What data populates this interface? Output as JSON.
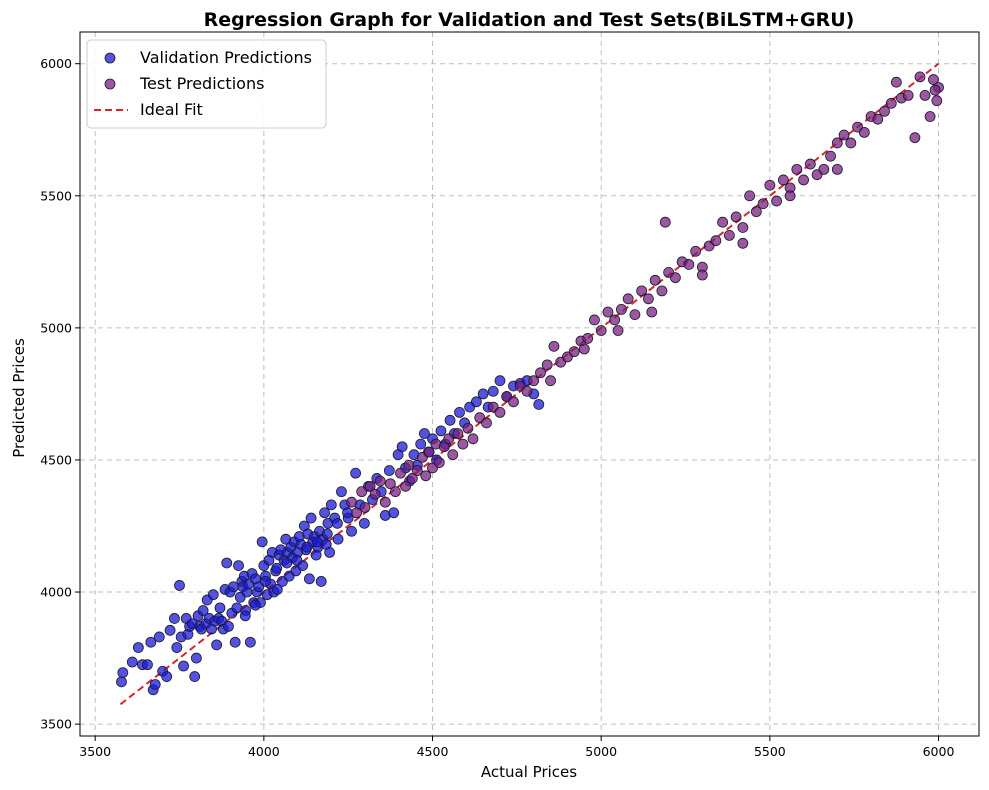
{
  "chart_data": {
    "type": "scatter",
    "title": "Regression Graph for Validation and Test Sets(BiLSTM+GRU)",
    "xlabel": "Actual Prices",
    "ylabel": "Predicted Prices",
    "xlim": [
      3455,
      6120
    ],
    "ylim": [
      3455,
      6120
    ],
    "x_ticks": [
      "3500",
      "4000",
      "4500",
      "5000",
      "5500",
      "6000"
    ],
    "y_ticks": [
      "3500",
      "4000",
      "4500",
      "5000",
      "5500",
      "6000"
    ],
    "grid": true,
    "legend_position": "top-left",
    "legend": {
      "validation": "Validation Predictions",
      "test": "Test Predictions",
      "ideal": "Ideal Fit"
    },
    "colors": {
      "validation_fill": "#1a1ad6",
      "test_fill": "#7a1f7f",
      "marker_edge": "#1a1a2e",
      "ideal_line": "#d62728"
    },
    "ideal_fit": {
      "x": [
        3575,
        6000
      ],
      "y": [
        3575,
        6000
      ]
    },
    "series": [
      {
        "name": "Validation Predictions",
        "points": [
          [
            3578,
            3660
          ],
          [
            3582,
            3695
          ],
          [
            3610,
            3735
          ],
          [
            3628,
            3790
          ],
          [
            3640,
            3725
          ],
          [
            3655,
            3725
          ],
          [
            3665,
            3810
          ],
          [
            3672,
            3630
          ],
          [
            3678,
            3650
          ],
          [
            3690,
            3830
          ],
          [
            3700,
            3700
          ],
          [
            3712,
            3680
          ],
          [
            3722,
            3855
          ],
          [
            3735,
            3900
          ],
          [
            3742,
            3790
          ],
          [
            3750,
            4025
          ],
          [
            3755,
            3830
          ],
          [
            3762,
            3720
          ],
          [
            3770,
            3900
          ],
          [
            3775,
            3840
          ],
          [
            3780,
            3870
          ],
          [
            3788,
            3880
          ],
          [
            3795,
            3680
          ],
          [
            3800,
            3750
          ],
          [
            3805,
            3910
          ],
          [
            3810,
            3870
          ],
          [
            3815,
            3860
          ],
          [
            3820,
            3930
          ],
          [
            3828,
            3880
          ],
          [
            3832,
            3970
          ],
          [
            3838,
            3900
          ],
          [
            3845,
            3860
          ],
          [
            3850,
            3990
          ],
          [
            3855,
            3890
          ],
          [
            3860,
            3800
          ],
          [
            3866,
            3900
          ],
          [
            3870,
            3940
          ],
          [
            3875,
            3890
          ],
          [
            3880,
            3860
          ],
          [
            3885,
            4010
          ],
          [
            3890,
            4110
          ],
          [
            3895,
            3870
          ],
          [
            3900,
            4000
          ],
          [
            3905,
            3920
          ],
          [
            3910,
            4020
          ],
          [
            3915,
            3810
          ],
          [
            3920,
            3940
          ],
          [
            3925,
            4100
          ],
          [
            3930,
            3980
          ],
          [
            3935,
            4040
          ],
          [
            3938,
            4020
          ],
          [
            3942,
            4060
          ],
          [
            3946,
            3930
          ],
          [
            3950,
            4000
          ],
          [
            3955,
            4030
          ],
          [
            3960,
            3810
          ],
          [
            3965,
            4070
          ],
          [
            3970,
            3960
          ],
          [
            3975,
            4050
          ],
          [
            3980,
            4000
          ],
          [
            3985,
            4020
          ],
          [
            3990,
            3960
          ],
          [
            3995,
            4190
          ],
          [
            4000,
            4100
          ],
          [
            4005,
            4060
          ],
          [
            4010,
            3990
          ],
          [
            4015,
            4120
          ],
          [
            4020,
            4030
          ],
          [
            4025,
            4150
          ],
          [
            4030,
            4000
          ],
          [
            4035,
            4080
          ],
          [
            4040,
            4010
          ],
          [
            4045,
            4140
          ],
          [
            4050,
            4160
          ],
          [
            4055,
            4040
          ],
          [
            4060,
            4120
          ],
          [
            4065,
            4200
          ],
          [
            4070,
            4150
          ],
          [
            4075,
            4060
          ],
          [
            4080,
            4170
          ],
          [
            4085,
            4130
          ],
          [
            4090,
            4190
          ],
          [
            4095,
            4080
          ],
          [
            4100,
            4150
          ],
          [
            4105,
            4210
          ],
          [
            4110,
            4180
          ],
          [
            4115,
            4100
          ],
          [
            4120,
            4250
          ],
          [
            4125,
            4160
          ],
          [
            4130,
            4220
          ],
          [
            4135,
            4050
          ],
          [
            4140,
            4280
          ],
          [
            4145,
            4190
          ],
          [
            4150,
            4210
          ],
          [
            4155,
            4140
          ],
          [
            4160,
            4170
          ],
          [
            4165,
            4230
          ],
          [
            4170,
            4040
          ],
          [
            4175,
            4200
          ],
          [
            4180,
            4300
          ],
          [
            4185,
            4180
          ],
          [
            4190,
            4260
          ],
          [
            4195,
            4150
          ],
          [
            4200,
            4330
          ],
          [
            4210,
            4280
          ],
          [
            4220,
            4200
          ],
          [
            4230,
            4380
          ],
          [
            4240,
            4330
          ],
          [
            4250,
            4280
          ],
          [
            4260,
            4230
          ],
          [
            4272,
            4450
          ],
          [
            4285,
            4330
          ],
          [
            4298,
            4260
          ],
          [
            4310,
            4400
          ],
          [
            4322,
            4350
          ],
          [
            4335,
            4430
          ],
          [
            4348,
            4380
          ],
          [
            4360,
            4290
          ],
          [
            4372,
            4460
          ],
          [
            4385,
            4300
          ],
          [
            4398,
            4520
          ],
          [
            4410,
            4550
          ],
          [
            4420,
            4470
          ],
          [
            4432,
            4420
          ],
          [
            4445,
            4520
          ],
          [
            4455,
            4480
          ],
          [
            4465,
            4560
          ],
          [
            4476,
            4600
          ],
          [
            4488,
            4530
          ],
          [
            4500,
            4580
          ],
          [
            4512,
            4500
          ],
          [
            4525,
            4610
          ],
          [
            4538,
            4560
          ],
          [
            4552,
            4650
          ],
          [
            4565,
            4600
          ],
          [
            4580,
            4680
          ],
          [
            4595,
            4640
          ],
          [
            4610,
            4700
          ],
          [
            4630,
            4720
          ],
          [
            4650,
            4750
          ],
          [
            4665,
            4700
          ],
          [
            4680,
            4760
          ],
          [
            4700,
            4800
          ],
          [
            4720,
            4740
          ],
          [
            4740,
            4780
          ],
          [
            4760,
            4790
          ],
          [
            4780,
            4800
          ],
          [
            4800,
            4750
          ],
          [
            4815,
            4710
          ],
          [
            3945,
            3910
          ],
          [
            3975,
            3950
          ],
          [
            4005,
            4040
          ],
          [
            4038,
            4090
          ],
          [
            4068,
            4110
          ],
          [
            4098,
            4120
          ],
          [
            4128,
            4170
          ],
          [
            4158,
            4190
          ],
          [
            4188,
            4220
          ],
          [
            4218,
            4260
          ],
          [
            4248,
            4300
          ]
        ]
      },
      {
        "name": "Test Predictions",
        "points": [
          [
            4260,
            4340
          ],
          [
            4275,
            4300
          ],
          [
            4290,
            4380
          ],
          [
            4300,
            4320
          ],
          [
            4315,
            4400
          ],
          [
            4330,
            4370
          ],
          [
            4345,
            4420
          ],
          [
            4360,
            4340
          ],
          [
            4375,
            4410
          ],
          [
            4390,
            4380
          ],
          [
            4405,
            4450
          ],
          [
            4420,
            4400
          ],
          [
            4430,
            4480
          ],
          [
            4440,
            4430
          ],
          [
            4455,
            4460
          ],
          [
            4470,
            4510
          ],
          [
            4480,
            4440
          ],
          [
            4490,
            4530
          ],
          [
            4500,
            4470
          ],
          [
            4510,
            4560
          ],
          [
            4520,
            4490
          ],
          [
            4535,
            4550
          ],
          [
            4548,
            4580
          ],
          [
            4560,
            4520
          ],
          [
            4575,
            4600
          ],
          [
            4590,
            4560
          ],
          [
            4605,
            4620
          ],
          [
            4620,
            4580
          ],
          [
            4640,
            4660
          ],
          [
            4660,
            4640
          ],
          [
            4680,
            4700
          ],
          [
            4700,
            4680
          ],
          [
            4720,
            4740
          ],
          [
            4740,
            4720
          ],
          [
            4760,
            4780
          ],
          [
            4780,
            4760
          ],
          [
            4800,
            4800
          ],
          [
            4820,
            4830
          ],
          [
            4840,
            4860
          ],
          [
            4860,
            4930
          ],
          [
            4880,
            4870
          ],
          [
            4900,
            4890
          ],
          [
            4920,
            4910
          ],
          [
            4940,
            4950
          ],
          [
            4960,
            4960
          ],
          [
            4980,
            5030
          ],
          [
            5000,
            4990
          ],
          [
            5020,
            5060
          ],
          [
            5040,
            5030
          ],
          [
            5060,
            5070
          ],
          [
            5080,
            5110
          ],
          [
            5100,
            5050
          ],
          [
            5120,
            5140
          ],
          [
            5140,
            5110
          ],
          [
            5160,
            5180
          ],
          [
            5180,
            5140
          ],
          [
            5190,
            5400
          ],
          [
            5200,
            5210
          ],
          [
            5220,
            5190
          ],
          [
            5240,
            5250
          ],
          [
            5260,
            5240
          ],
          [
            5280,
            5290
          ],
          [
            5300,
            5230
          ],
          [
            5320,
            5310
          ],
          [
            5340,
            5330
          ],
          [
            5360,
            5400
          ],
          [
            5380,
            5350
          ],
          [
            5400,
            5420
          ],
          [
            5420,
            5380
          ],
          [
            5440,
            5500
          ],
          [
            5460,
            5440
          ],
          [
            5480,
            5470
          ],
          [
            5500,
            5540
          ],
          [
            5520,
            5480
          ],
          [
            5540,
            5560
          ],
          [
            5560,
            5530
          ],
          [
            5580,
            5600
          ],
          [
            5600,
            5560
          ],
          [
            5620,
            5620
          ],
          [
            5640,
            5580
          ],
          [
            5660,
            5600
          ],
          [
            5680,
            5650
          ],
          [
            5700,
            5700
          ],
          [
            5720,
            5730
          ],
          [
            5740,
            5700
          ],
          [
            5760,
            5760
          ],
          [
            5780,
            5740
          ],
          [
            5800,
            5800
          ],
          [
            5820,
            5790
          ],
          [
            5840,
            5820
          ],
          [
            5860,
            5850
          ],
          [
            5875,
            5930
          ],
          [
            5890,
            5870
          ],
          [
            5910,
            5880
          ],
          [
            5930,
            5720
          ],
          [
            5945,
            5950
          ],
          [
            5960,
            5880
          ],
          [
            5975,
            5800
          ],
          [
            5985,
            5940
          ],
          [
            5995,
            5860
          ],
          [
            6000,
            5910
          ],
          [
            5990,
            5900
          ],
          [
            5700,
            5600
          ],
          [
            5560,
            5500
          ],
          [
            5420,
            5320
          ],
          [
            5300,
            5200
          ],
          [
            5150,
            5060
          ],
          [
            5050,
            4990
          ],
          [
            4950,
            4920
          ],
          [
            4850,
            4800
          ]
        ]
      }
    ]
  }
}
